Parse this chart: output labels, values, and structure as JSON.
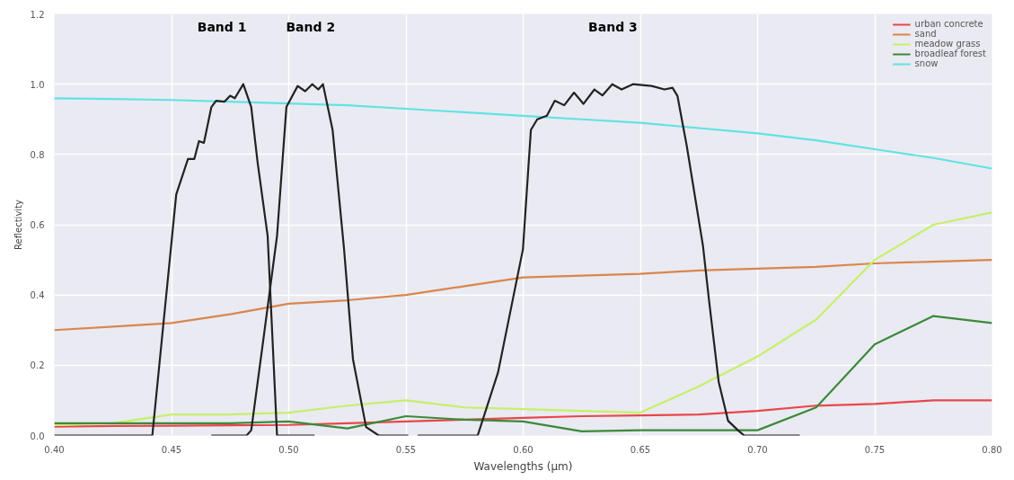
{
  "chart_data": {
    "type": "line",
    "xlabel": "Wavelengths (µm)",
    "ylabel": "Reflectivity",
    "x": [
      0.4,
      0.425,
      0.45,
      0.475,
      0.5,
      0.525,
      0.55,
      0.575,
      0.6,
      0.625,
      0.65,
      0.675,
      0.7,
      0.725,
      0.75,
      0.775,
      0.8
    ],
    "xlim": [
      0.4,
      0.8
    ],
    "ylim": [
      0,
      1.2
    ],
    "xticks": [
      {
        "value": 0.4,
        "label": "0.40"
      },
      {
        "value": 0.45,
        "label": "0.45"
      },
      {
        "value": 0.5,
        "label": "0.50"
      },
      {
        "value": 0.55,
        "label": "0.55"
      },
      {
        "value": 0.6,
        "label": "0.60"
      },
      {
        "value": 0.65,
        "label": "0.65"
      },
      {
        "value": 0.7,
        "label": "0.70"
      },
      {
        "value": 0.75,
        "label": "0.75"
      },
      {
        "value": 0.8,
        "label": "0.80"
      }
    ],
    "yticks": [
      {
        "value": 0,
        "label": "0.0"
      },
      {
        "value": 0.2,
        "label": "0.2"
      },
      {
        "value": 0.4,
        "label": "0.4"
      },
      {
        "value": 0.6,
        "label": "0.6"
      },
      {
        "value": 0.8,
        "label": "0.8"
      },
      {
        "value": 1,
        "label": "1.0"
      },
      {
        "value": 1.2,
        "label": "1.2"
      }
    ],
    "grid": true,
    "legend": "top right",
    "marker": "none",
    "line_style": "solid",
    "series": [
      {
        "name": "urban concrete",
        "color": "#e8474b",
        "values": [
          0.025,
          0.027,
          0.028,
          0.029,
          0.03,
          0.035,
          0.04,
          0.045,
          0.05,
          0.055,
          0.057,
          0.06,
          0.07,
          0.085,
          0.09,
          0.1,
          0.1
        ]
      },
      {
        "name": "sand",
        "color": "#d9864e",
        "values": [
          0.3,
          0.31,
          0.32,
          0.345,
          0.375,
          0.385,
          0.4,
          0.425,
          0.45,
          0.455,
          0.46,
          0.47,
          0.475,
          0.48,
          0.49,
          0.495,
          0.5
        ]
      },
      {
        "name": "meadow grass",
        "color": "#c5f06a",
        "values": [
          0.03,
          0.035,
          0.06,
          0.06,
          0.065,
          0.085,
          0.1,
          0.08,
          0.075,
          0.07,
          0.065,
          0.14,
          0.225,
          0.33,
          0.5,
          0.6,
          0.635
        ]
      },
      {
        "name": "broadleaf forest",
        "color": "#3b8a3b",
        "values": [
          0.035,
          0.035,
          0.035,
          0.035,
          0.04,
          0.02,
          0.055,
          0.045,
          0.04,
          0.012,
          0.015,
          0.015,
          0.015,
          0.08,
          0.26,
          0.34,
          0.32
        ]
      },
      {
        "name": "snow",
        "color": "#5fe3e3",
        "values": [
          0.96,
          0.958,
          0.955,
          0.95,
          0.945,
          0.94,
          0.93,
          0.92,
          0.91,
          0.9,
          0.89,
          0.875,
          0.86,
          0.84,
          0.815,
          0.79,
          0.76
        ]
      },
      {
        "color": "#222222",
        "x": [
          0.4,
          0.4418,
          0.452,
          0.457,
          0.4597,
          0.4617,
          0.4638,
          0.467,
          0.469,
          0.4725,
          0.475,
          0.477,
          0.4806,
          0.484,
          0.4867,
          0.491,
          0.495,
          0.511
        ],
        "values": [
          0,
          0,
          0.686,
          0.787,
          0.787,
          0.838,
          0.833,
          0.935,
          0.953,
          0.95,
          0.967,
          0.96,
          1.0,
          0.935,
          0.778,
          0.568,
          0,
          0
        ]
      },
      {
        "color": "#222222",
        "x": [
          0.467,
          0.482,
          0.484,
          0.4895,
          0.495,
          0.499,
          0.5038,
          0.507,
          0.51,
          0.5126,
          0.5146,
          0.5187,
          0.5236,
          0.5274,
          0.533,
          0.5384,
          0.551
        ],
        "values": [
          0,
          0,
          0.015,
          0.29,
          0.568,
          0.935,
          0.995,
          0.98,
          1.0,
          0.985,
          1.0,
          0.87,
          0.53,
          0.217,
          0.024,
          0,
          0
        ]
      },
      {
        "color": "#222222",
        "x": [
          0.555,
          0.5806,
          0.5893,
          0.5999,
          0.6033,
          0.606,
          0.6101,
          0.6135,
          0.6175,
          0.6217,
          0.6257,
          0.6304,
          0.6338,
          0.638,
          0.642,
          0.6468,
          0.6548,
          0.6603,
          0.6637,
          0.6658,
          0.6698,
          0.6767,
          0.6793,
          0.6834,
          0.6874,
          0.6916,
          0.6943,
          0.718
        ],
        "values": [
          0,
          0,
          0.18,
          0.53,
          0.87,
          0.9,
          0.91,
          0.953,
          0.94,
          0.976,
          0.944,
          0.985,
          0.968,
          1.0,
          0.985,
          1.0,
          0.995,
          0.985,
          0.99,
          0.967,
          0.824,
          0.54,
          0.384,
          0.153,
          0.042,
          0.015,
          0,
          0
        ]
      }
    ],
    "annotations": [
      "Band 1",
      "Band 2",
      "Band 3"
    ]
  }
}
